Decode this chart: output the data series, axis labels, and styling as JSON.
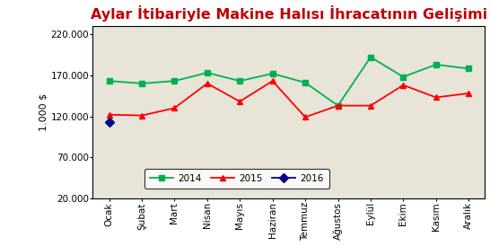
{
  "title": "Aylar İtibariyle Makine Halısı İhracatının Gelişimi",
  "ylabel": "1.000 $",
  "months": [
    "Ocak",
    "Şubat",
    "Mart",
    "Nisan",
    "Mayıs",
    "Haziran",
    "Temmuz",
    "Ağustos",
    "Eylül",
    "Ekim",
    "Kasım",
    "Aralık"
  ],
  "series_2014": [
    163000,
    160000,
    163000,
    173000,
    163000,
    172000,
    161000,
    133000,
    192000,
    168000,
    183000,
    178000
  ],
  "series_2015": [
    122000,
    121000,
    130000,
    160000,
    138000,
    163000,
    119000,
    133000,
    133000,
    158000,
    143000,
    148000
  ],
  "series_2016": [
    113000,
    null,
    null,
    null,
    null,
    null,
    null,
    null,
    null,
    null,
    null,
    null
  ],
  "color_2014": "#00b050",
  "color_2015": "#ff0000",
  "color_2016": "#00008b",
  "marker_2014": "s",
  "marker_2015": "^",
  "marker_2016": "D",
  "ylim": [
    20000,
    230000
  ],
  "yticks": [
    20000,
    70000,
    120000,
    170000,
    220000
  ],
  "plot_bg_color": "#e8e4d8",
  "fig_bg_color": "#ffffff",
  "title_color": "#c00000",
  "title_fontsize": 11.5,
  "tick_fontsize": 7.5,
  "ylabel_fontsize": 8
}
